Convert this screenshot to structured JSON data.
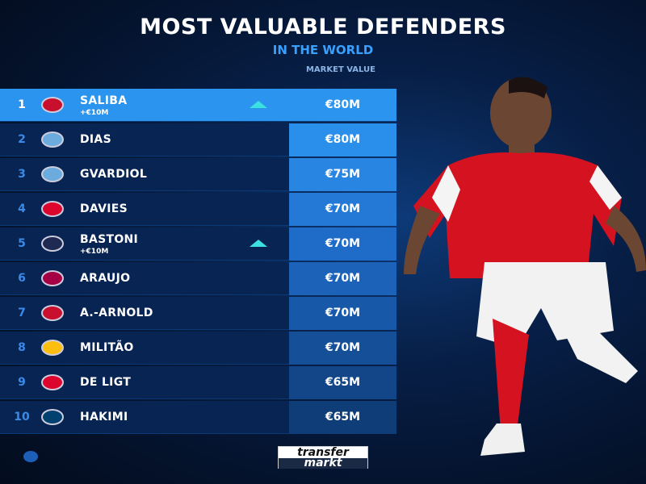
{
  "title": "MOST VALUABLE DEFENDERS",
  "subtitle": "IN THE WORLD",
  "column_header": "MARKET VALUE",
  "brand": {
    "line1": "transfer",
    "line2": "markt"
  },
  "rows": [
    {
      "rank": "1",
      "club_icon": "arsenal-crest",
      "name": "SALIBA",
      "delta": "+€10M",
      "trend": "up",
      "value": "€80M",
      "color": "#c8102e"
    },
    {
      "rank": "2",
      "club_icon": "man-city-crest",
      "name": "DIAS",
      "value": "€80M",
      "color": "#6cabdd"
    },
    {
      "rank": "3",
      "club_icon": "man-city-crest",
      "name": "GVARDIOL",
      "value": "€75M",
      "color": "#6cabdd"
    },
    {
      "rank": "4",
      "club_icon": "bayern-crest",
      "name": "DAVIES",
      "value": "€70M",
      "color": "#dc052d"
    },
    {
      "rank": "5",
      "club_icon": "inter-crest",
      "name": "BASTONI",
      "delta": "+€10M",
      "trend": "up",
      "value": "€70M",
      "color": "#1e2a52"
    },
    {
      "rank": "6",
      "club_icon": "barcelona-crest",
      "name": "ARAUJO",
      "value": "€70M",
      "color": "#a50044"
    },
    {
      "rank": "7",
      "club_icon": "liverpool-crest",
      "name": "A.-ARNOLD",
      "value": "€70M",
      "color": "#c8102e"
    },
    {
      "rank": "8",
      "club_icon": "real-madrid-crest",
      "name": "MILITÃO",
      "value": "€70M",
      "color": "#febe10"
    },
    {
      "rank": "9",
      "club_icon": "bayern-crest",
      "name": "DE LIGT",
      "value": "€65M",
      "color": "#dc052d"
    },
    {
      "rank": "10",
      "club_icon": "psg-crest",
      "name": "HAKIMI",
      "value": "€65M",
      "color": "#004170"
    }
  ],
  "value_shades": [
    "#2a94ee",
    "#2a8fea",
    "#2886e2",
    "#2479d6",
    "#1f6cc8",
    "#1b62b8",
    "#1858a8",
    "#154f98",
    "#124688",
    "#0f3d78"
  ]
}
